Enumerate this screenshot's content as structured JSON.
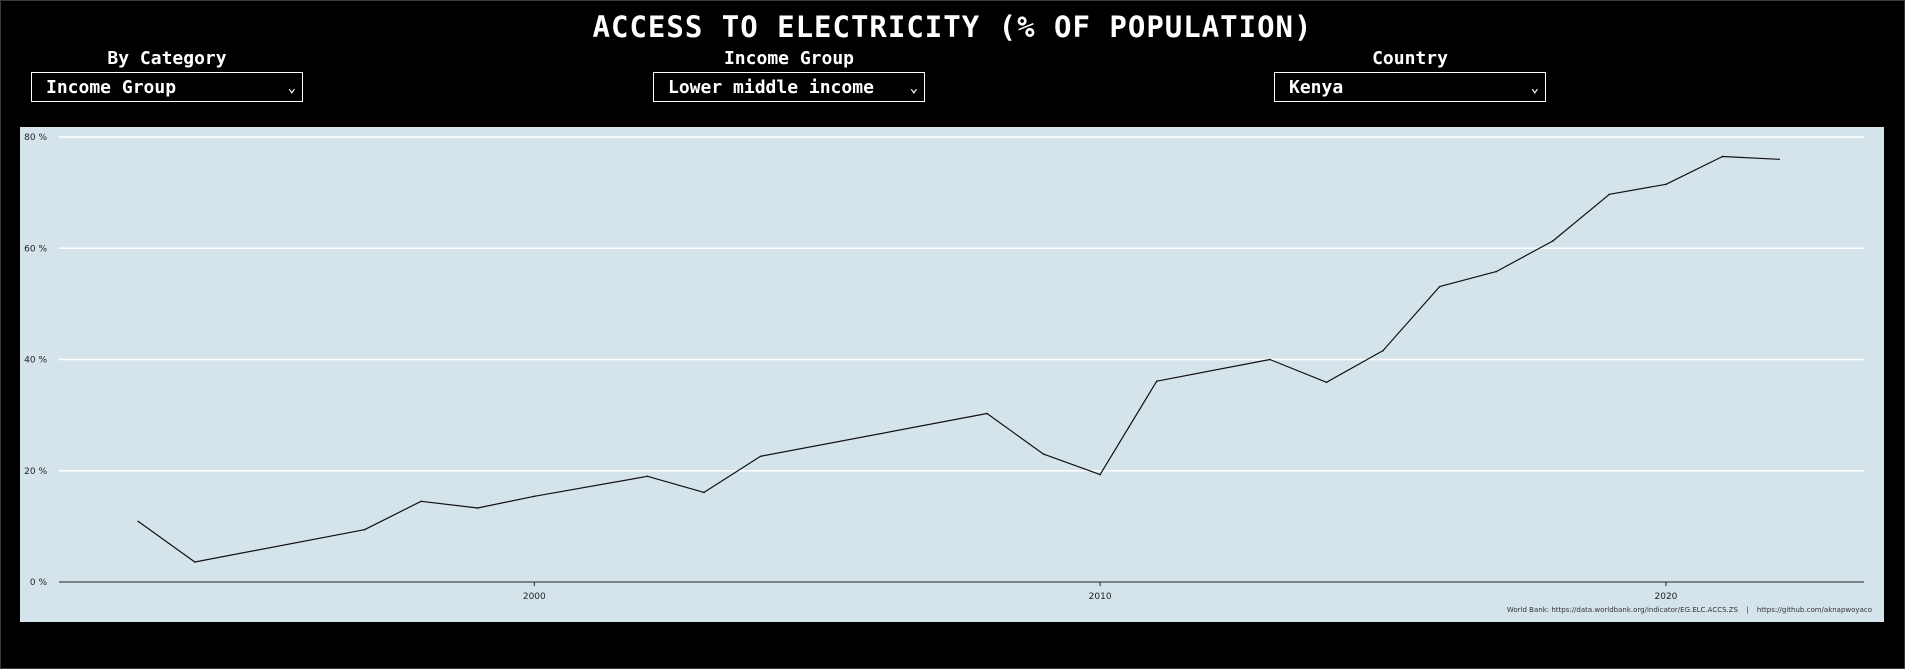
{
  "title": "ACCESS TO ELECTRICITY (% OF POPULATION)",
  "filters": [
    {
      "label": "By Category",
      "value": "Income Group"
    },
    {
      "label": "Income Group",
      "value": "Lower middle income"
    },
    {
      "label": "Country",
      "value": "Kenya"
    }
  ],
  "source": {
    "world_bank": "World Bank: https://data.worldbank.org/indicator/EG.ELC.ACCS.ZS",
    "separator": "|",
    "github": "https://github.com/aknapwoyaco"
  },
  "colors": {
    "page_background": "#000000",
    "plot_background": "#d5e4eb",
    "line": "#111111",
    "gridline": "#ffffff"
  },
  "icons": {
    "dropdown": "chevron-down-icon"
  },
  "chart_data": {
    "type": "line",
    "title": "ACCESS TO ELECTRICITY (% OF POPULATION)",
    "xlabel": "",
    "ylabel": "",
    "xlim": [
      1991.6,
      2023.5
    ],
    "ylim": [
      0,
      80
    ],
    "x_ticks": [
      2000,
      2010,
      2020
    ],
    "x_tick_labels": [
      "2000",
      "2010",
      "2020"
    ],
    "y_ticks": [
      0,
      20,
      40,
      60,
      80
    ],
    "y_tick_labels": [
      "0 %",
      "20 %",
      "40 %",
      "60 %",
      "80 %"
    ],
    "grid": "horizontal",
    "legend": "none",
    "series": [
      {
        "x": [
          1993,
          1994,
          1997,
          1998,
          1999,
          2000,
          2002,
          2003,
          2004,
          2008,
          2009,
          2010,
          2011,
          2013,
          2014,
          2015,
          2016,
          2017,
          2018,
          2019,
          2020,
          2021,
          2022
        ],
        "values": [
          10.9,
          3.6,
          9.4,
          14.5,
          13.3,
          15.4,
          19.0,
          16.1,
          22.6,
          30.3,
          23.0,
          19.3,
          36.1,
          40.0,
          35.9,
          41.6,
          53.1,
          55.8,
          61.3,
          69.7,
          71.5,
          76.5,
          76.0
        ]
      }
    ]
  }
}
